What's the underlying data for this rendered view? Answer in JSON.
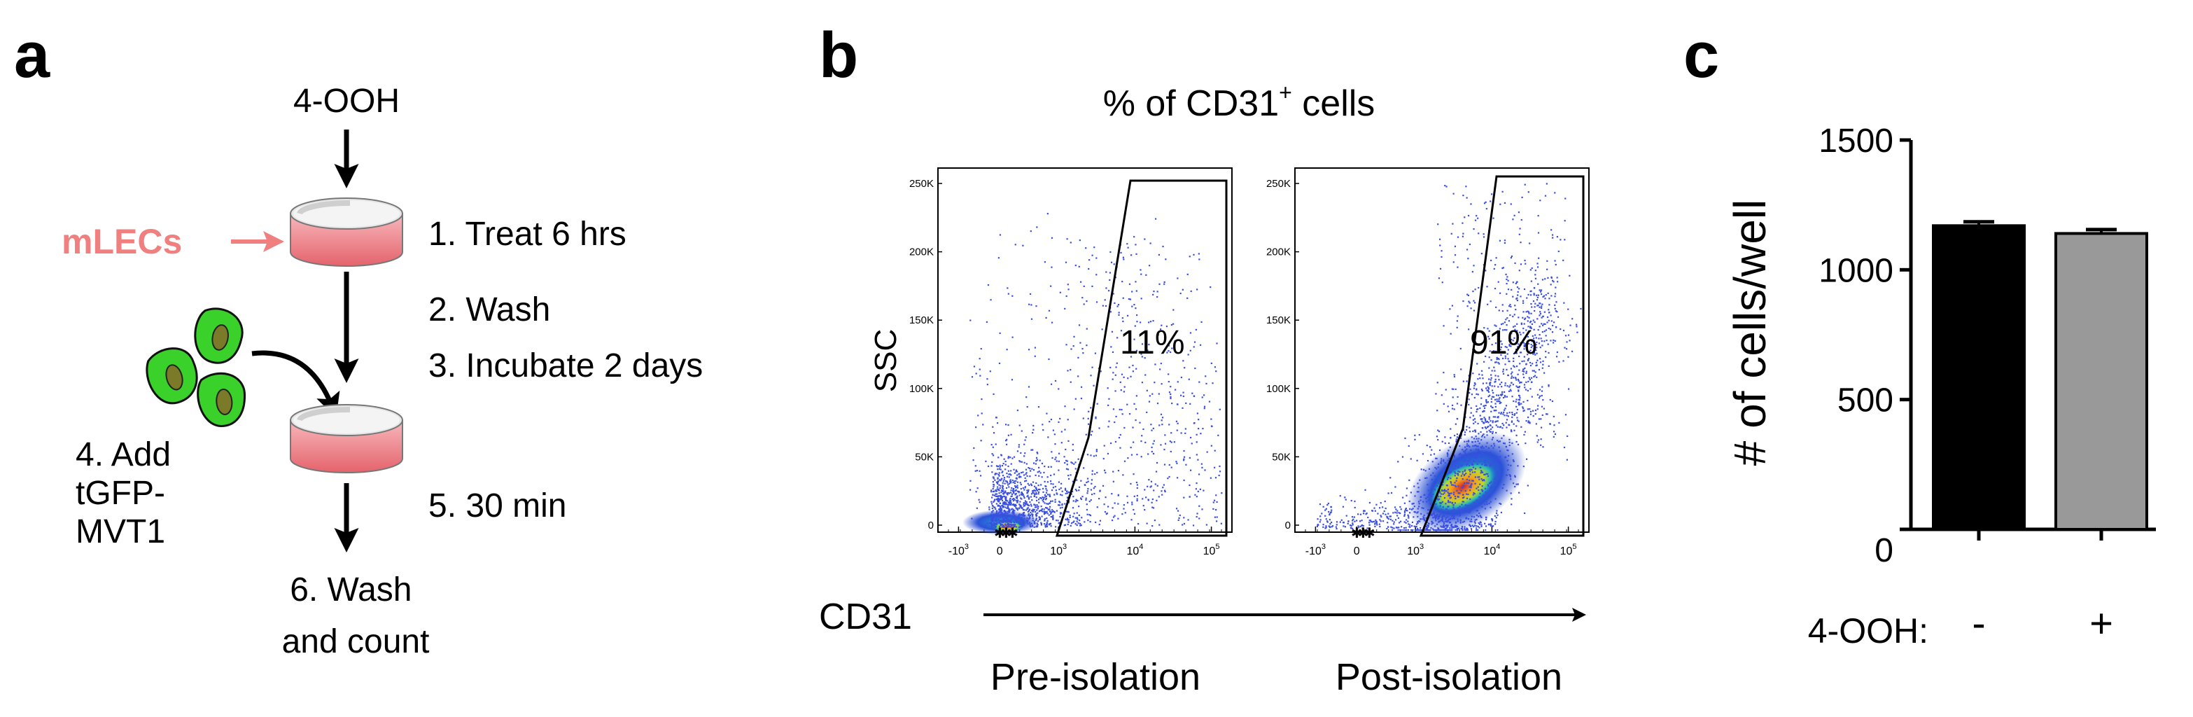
{
  "panel_a": {
    "letter": "a",
    "drug": "4-OOH",
    "cell_label": "mLECs",
    "steps": {
      "s1": "1. Treat 6 hrs",
      "s2": "2. Wash",
      "s3": "3. Incubate 2 days",
      "s4": [
        "4. Add",
        "tGFP-",
        "MVT1"
      ],
      "s5": "5. 30 min",
      "s6": [
        "6. Wash",
        "and count"
      ]
    }
  },
  "panel_b": {
    "letter": "b",
    "title_prefix": "% of CD31",
    "title_sup": "+",
    "title_suffix": " cells",
    "y_label": "SSC",
    "x_label": "CD31",
    "y_ticks": [
      "250K",
      "200K",
      "150K",
      "100K",
      "50K",
      "0"
    ],
    "x_ticks": [
      {
        "base": "-10",
        "exp": "3"
      },
      {
        "base": "0",
        "exp": ""
      },
      {
        "base": "10",
        "exp": "3"
      },
      {
        "base": "10",
        "exp": "4"
      },
      {
        "base": "10",
        "exp": "5"
      }
    ],
    "plots": [
      {
        "name": "Pre-isolation",
        "percent": "11%"
      },
      {
        "name": "Post-isolation",
        "percent": "91%"
      }
    ]
  },
  "chart_data": {
    "type": "bar",
    "panel_letter": "c",
    "title": "",
    "xlabel": "4-OOH:",
    "ylabel": "# of cells/well",
    "categories": [
      "-",
      "+"
    ],
    "values": [
      1170,
      1140
    ],
    "errors": [
      15,
      15
    ],
    "colors": [
      "#000000",
      "#999999"
    ],
    "ylim": [
      0,
      1500
    ],
    "yticks": [
      0,
      500,
      1000,
      1500
    ]
  }
}
